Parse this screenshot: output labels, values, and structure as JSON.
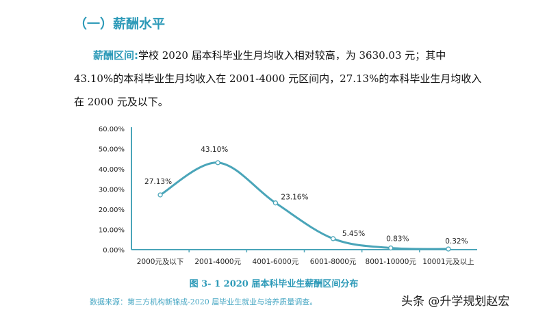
{
  "section_title": "（一）薪酬水平",
  "paragraph": {
    "lead": "薪酬区间:",
    "text": "学校 2020 届本科毕业生月均收入相对较高，为 3630.03 元；其中 43.10%的本科毕业生月均收入在 2001-4000 元区间内，27.13%的本科毕业生月均收入在 2000 元及以下。"
  },
  "chart_data": {
    "type": "line",
    "smooth": true,
    "categories": [
      "2000元及以下",
      "2001-4000元",
      "4001-6000元",
      "6001-8000元",
      "8001-10000元",
      "10001元及以上"
    ],
    "values": [
      27.13,
      43.1,
      23.16,
      5.45,
      0.83,
      0.32
    ],
    "data_labels": [
      "27.13%",
      "43.10%",
      "23.16%",
      "5.45%",
      "0.83%",
      "0.32%"
    ],
    "y_ticks": [
      "0.00%",
      "10.00%",
      "20.00%",
      "30.00%",
      "40.00%",
      "50.00%",
      "60.00%"
    ],
    "ylim": [
      0,
      60
    ],
    "grid": false,
    "line_color": "#4aa5b9",
    "title": "图 3- 1    2020 届本科毕业生薪酬区间分布"
  },
  "source": "数据来源：第三方机构新锦成-2020 届毕业生就业与培养质量调查。",
  "watermark": "头条 @升学规划赵宏"
}
